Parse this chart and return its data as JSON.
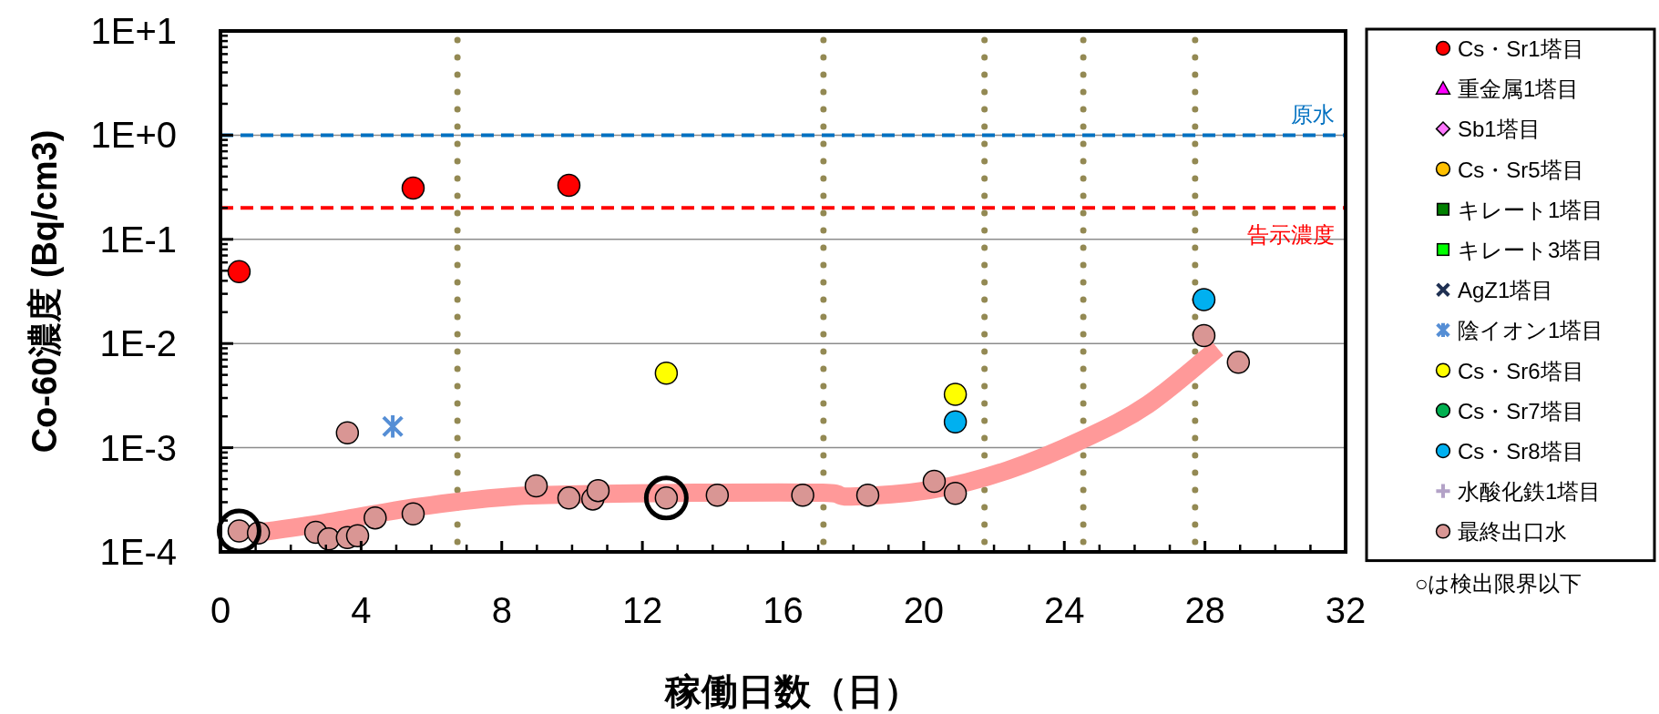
{
  "chart_data": {
    "type": "scatter",
    "xlabel": "稼働日数（日）",
    "ylabel": "Co-60濃度 (Bq/cm3)",
    "xlim": [
      0,
      32
    ],
    "xticks": [
      0,
      4,
      8,
      12,
      16,
      20,
      24,
      28,
      32
    ],
    "ylim": [
      0.0001,
      10
    ],
    "log": "y",
    "yticks": [
      {
        "value": 0.0001,
        "label": "1E-4"
      },
      {
        "value": 0.001,
        "label": "1E-3"
      },
      {
        "value": 0.01,
        "label": "1E-2"
      },
      {
        "value": 0.1,
        "label": "1E-1"
      },
      {
        "value": 1,
        "label": "1E+0"
      },
      {
        "value": 10,
        "label": "1E+1"
      }
    ],
    "grid": "y",
    "legend": "right",
    "series": [
      {
        "type": "line",
        "color": "#ff9999",
        "marker": "none",
        "line_style": "solid",
        "x": [
          0.86,
          2.97,
          5.61,
          8.26,
          10.9,
          13.54,
          17.13,
          17.93,
          20.3,
          22.4,
          24.53,
          26.38,
          28.36
        ],
        "values": [
          0.00015,
          0.00019,
          0.00027,
          0.00034,
          0.00036,
          0.00037,
          0.00037,
          0.00034,
          0.0004,
          0.00061,
          0.0012,
          0.0026,
          0.009
        ]
      },
      {
        "name": "Cs・Sr1塔目",
        "color": "#ff0000",
        "marker": "circle",
        "x": [
          0.53,
          5.48,
          9.91
        ],
        "values": [
          0.049,
          0.31,
          0.33
        ]
      },
      {
        "name": "重金属1塔目",
        "color": "#ff00ff",
        "marker": "triangle"
      },
      {
        "name": "Sb1塔目",
        "color": "#ff77ff",
        "marker": "diamond"
      },
      {
        "name": "Cs・Sr5塔目",
        "color": "#ffc000",
        "marker": "circle"
      },
      {
        "name": "キレート1塔目",
        "color": "#008000",
        "marker": "square"
      },
      {
        "name": "キレート3塔目",
        "color": "#00ff00",
        "marker": "square"
      },
      {
        "name": "AgZ1塔目",
        "color": "#1f3052",
        "marker": "cross"
      },
      {
        "name": "陰イオン1塔目",
        "color": "#558ed5",
        "marker": "cross",
        "x": [
          4.9
        ],
        "values": [
          0.0016
        ]
      },
      {
        "name": "Cs・Sr6塔目",
        "color": "#ffff00",
        "marker": "circle",
        "x": [
          12.68,
          20.9
        ],
        "values": [
          0.0052,
          0.00325
        ]
      },
      {
        "name": "Cs・Sr7塔目",
        "color": "#00b050",
        "marker": "circle"
      },
      {
        "name": "Cs・Sr8塔目",
        "color": "#00b0f0",
        "marker": "circle",
        "x": [
          20.9,
          27.97
        ],
        "values": [
          0.00177,
          0.0264
        ]
      },
      {
        "name": "水酸化鉄1塔目",
        "color": "#b3a2c7",
        "marker": "plus"
      },
      {
        "name": "最終出口水",
        "color": "#d99694",
        "marker": "circle",
        "x": [
          0.53,
          1.08,
          2.71,
          3.08,
          3.61,
          3.61,
          3.9,
          4.4,
          5.48,
          8.98,
          9.91,
          10.59,
          10.74,
          12.68,
          14.13,
          16.56,
          18.41,
          20.3,
          20.9,
          27.97,
          28.95
        ],
        "values": [
          0.000159,
          0.000152,
          0.000154,
          0.000133,
          0.00139,
          0.000137,
          0.000143,
          0.000212,
          0.000232,
          0.00043,
          0.000329,
          0.000322,
          0.000388,
          0.000329,
          0.00035,
          0.00035,
          0.00035,
          0.000476,
          0.000365,
          0.0119,
          0.0066
        ]
      },
      {
        "color": "#000000",
        "marker": "circle",
        "x": [
          0.53,
          12.68
        ],
        "values": [
          0.000159,
          0.000329
        ]
      }
    ],
    "ref_lines": [
      {
        "axis": "y",
        "value": 1,
        "label": "原水",
        "color": "#0070c0",
        "line_style": "dashed"
      },
      {
        "axis": "y",
        "value": 0.2,
        "label": "告示濃度",
        "color": "#ff0000",
        "line_style": "dashed"
      },
      {
        "axis": "x",
        "value": 6.74,
        "color": "#938953",
        "line_style": "dotted"
      },
      {
        "axis": "x",
        "value": 17.15,
        "color": "#938953",
        "line_style": "dotted"
      },
      {
        "axis": "x",
        "value": 21.73,
        "color": "#938953",
        "line_style": "dotted"
      },
      {
        "axis": "x",
        "value": 24.54,
        "color": "#938953",
        "line_style": "dotted"
      },
      {
        "axis": "x",
        "value": 27.72,
        "color": "#938953",
        "line_style": "dotted"
      }
    ],
    "annotations": [
      "○は検出限界以下"
    ]
  }
}
